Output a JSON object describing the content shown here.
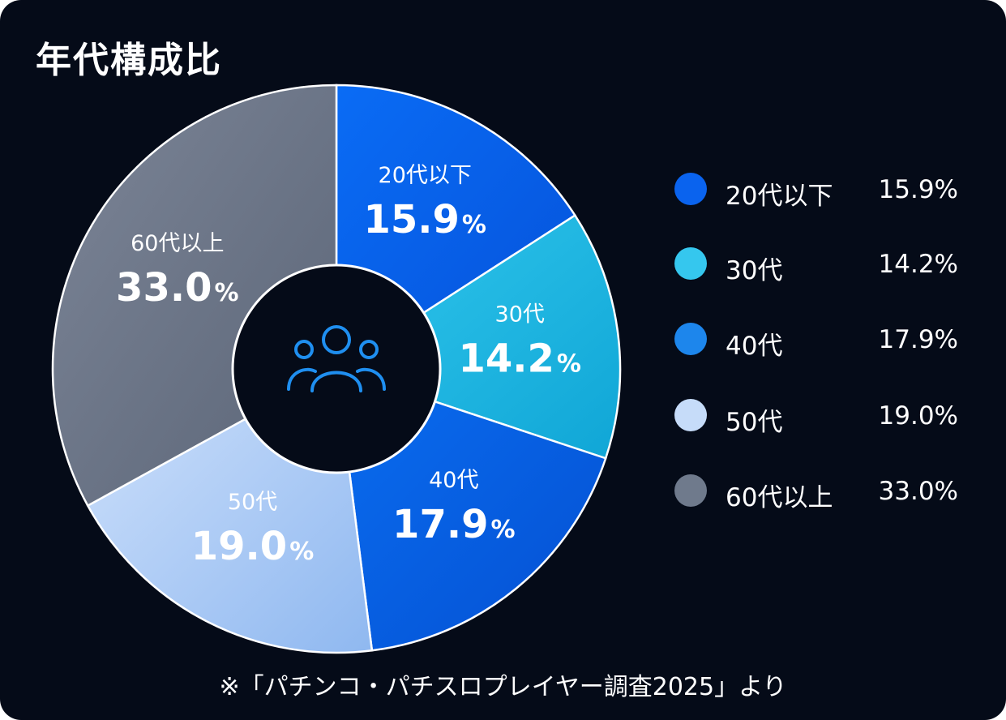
{
  "title": "年代構成比",
  "source_note": "※「パチンコ・パチスロプレイヤー調査2025」より",
  "percent_suffix": "%",
  "center_icon": "users-group-icon",
  "chart_data": {
    "type": "pie",
    "variant": "donut",
    "categories": [
      "20代以下",
      "30代",
      "40代",
      "50代",
      "60代以上"
    ],
    "values": [
      15.9,
      14.2,
      17.9,
      19.0,
      33.0
    ],
    "value_labels": [
      "15.9",
      "14.2",
      "17.9",
      "19.0",
      "33.0"
    ],
    "unit": "%",
    "colors": [
      "#0866ee",
      "#1fb4e0",
      "#0860e0",
      "#a4c8f6",
      "#6d7788"
    ],
    "legend_colors": [
      "#0a63ee",
      "#35c7ee",
      "#1d86ec",
      "#c6dcf9",
      "#6f7a8c"
    ],
    "legend_position": "right",
    "start_angle_deg": 0,
    "direction": "clockwise"
  },
  "legend": {
    "items": [
      {
        "label": "20代以下",
        "value": "15.9%"
      },
      {
        "label": "30代",
        "value": "14.2%"
      },
      {
        "label": "40代",
        "value": "17.9%"
      },
      {
        "label": "50代",
        "value": "19.0%"
      },
      {
        "label": "60代以上",
        "value": "33.0%"
      }
    ]
  }
}
